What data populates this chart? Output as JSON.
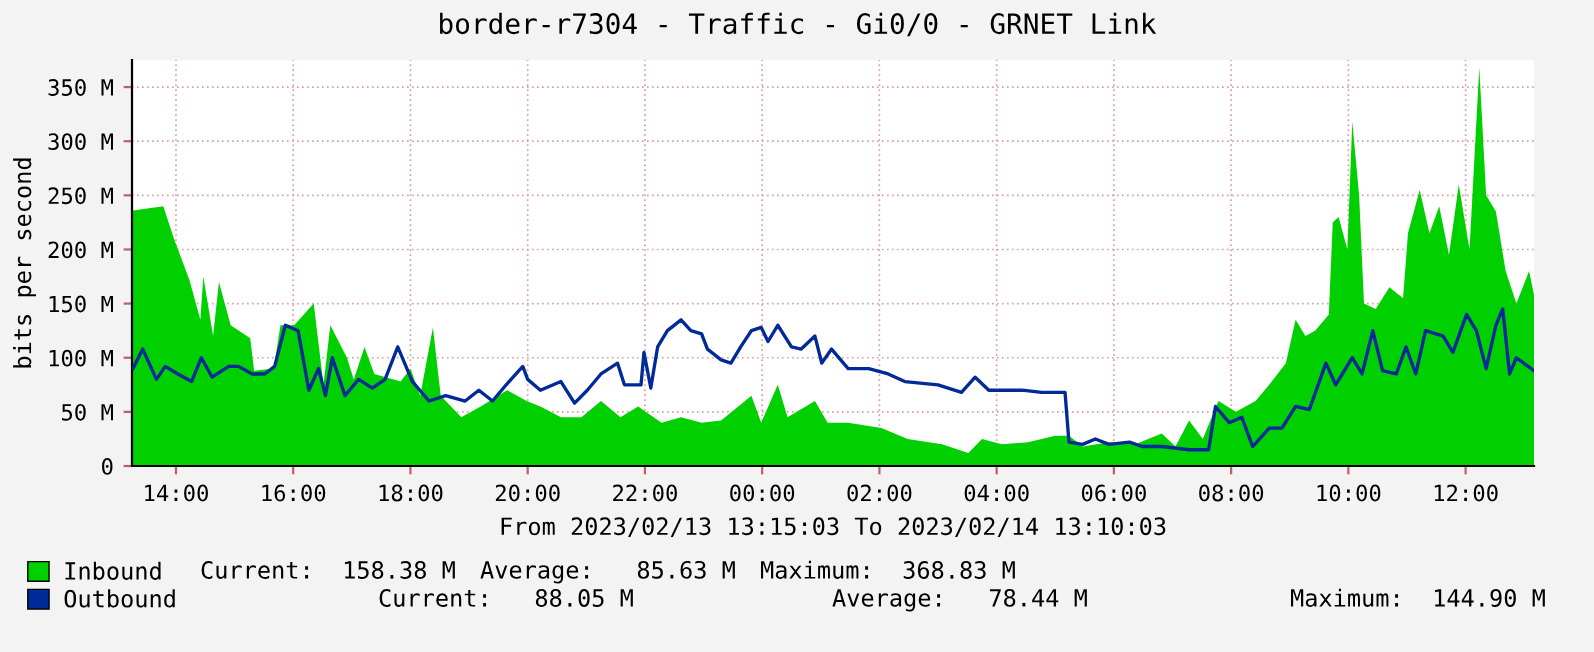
{
  "chart_data": {
    "type": "area",
    "title": "border-r7304 - Traffic - Gi0/0 - GRNET Link",
    "xlabel": "From 2023/02/13 13:15:03 To 2023/02/14 13:10:03",
    "ylabel": "bits per second",
    "xlim": [
      "2023-02-13T13:15",
      "2023-02-14T13:10"
    ],
    "ylim": [
      0,
      375
    ],
    "xticks": [
      {
        "value": "2023-02-13T14:00",
        "label": "14:00"
      },
      {
        "value": "2023-02-13T16:00",
        "label": "16:00"
      },
      {
        "value": "2023-02-13T18:00",
        "label": "18:00"
      },
      {
        "value": "2023-02-13T20:00",
        "label": "20:00"
      },
      {
        "value": "2023-02-13T22:00",
        "label": "22:00"
      },
      {
        "value": "2023-02-14T00:00",
        "label": "00:00"
      },
      {
        "value": "2023-02-14T02:00",
        "label": "02:00"
      },
      {
        "value": "2023-02-14T04:00",
        "label": "04:00"
      },
      {
        "value": "2023-02-14T06:00",
        "label": "06:00"
      },
      {
        "value": "2023-02-14T08:00",
        "label": "08:00"
      },
      {
        "value": "2023-02-14T10:00",
        "label": "10:00"
      },
      {
        "value": "2023-02-14T12:00",
        "label": "12:00"
      }
    ],
    "yticks": [
      0,
      {
        "value": 50,
        "label": "50 M"
      },
      {
        "value": 100,
        "label": "100 M"
      },
      {
        "value": 150,
        "label": "150 M"
      },
      {
        "value": 200,
        "label": "200 M"
      },
      {
        "value": 250,
        "label": "250 M"
      },
      {
        "value": 300,
        "label": "300 M"
      },
      {
        "value": 350,
        "label": "350 M"
      }
    ],
    "grid": true,
    "legend": "bottom left",
    "series": [
      {
        "name": "Inbound",
        "color": "#00cf00",
        "x": [
          "2023-02-13T13:16",
          "2023-02-13T13:47",
          "2023-02-13T13:58",
          "2023-02-13T14:14",
          "2023-02-13T14:25",
          "2023-02-13T14:28",
          "2023-02-13T14:38",
          "2023-02-13T14:44",
          "2023-02-13T14:56",
          "2023-02-13T15:16",
          "2023-02-13T15:20",
          "2023-02-13T15:40",
          "2023-02-13T15:47",
          "2023-02-13T16:01",
          "2023-02-13T16:21",
          "2023-02-13T16:31",
          "2023-02-13T16:38",
          "2023-02-13T16:55",
          "2023-02-13T17:02",
          "2023-02-13T17:13",
          "2023-02-13T17:23",
          "2023-02-13T17:50",
          "2023-02-13T18:00",
          "2023-02-13T18:10",
          "2023-02-13T18:23",
          "2023-02-13T18:31",
          "2023-02-13T18:52",
          "2023-02-13T19:12",
          "2023-02-13T19:39",
          "2023-02-13T19:59",
          "2023-02-13T20:13",
          "2023-02-13T20:34",
          "2023-02-13T20:55",
          "2023-02-13T21:15",
          "2023-02-13T21:35",
          "2023-02-13T21:53",
          "2023-02-13T22:17",
          "2023-02-13T22:37",
          "2023-02-13T22:58",
          "2023-02-13T23:18",
          "2023-02-13T23:49",
          "2023-02-13T23:59",
          "2023-02-14T00:16",
          "2023-02-14T00:26",
          "2023-02-14T00:54",
          "2023-02-14T01:07",
          "2023-02-14T01:28",
          "2023-02-14T02:02",
          "2023-02-14T02:29",
          "2023-02-14T03:04",
          "2023-02-14T03:31",
          "2023-02-14T03:45",
          "2023-02-14T04:05",
          "2023-02-14T04:32",
          "2023-02-14T05:00",
          "2023-02-14T05:14",
          "2023-02-14T05:28",
          "2023-02-14T05:55",
          "2023-02-14T06:22",
          "2023-02-14T06:49",
          "2023-02-14T07:03",
          "2023-02-14T07:17",
          "2023-02-14T07:31",
          "2023-02-14T07:47",
          "2023-02-14T08:05",
          "2023-02-14T08:25",
          "2023-02-14T08:39",
          "2023-02-14T08:56",
          "2023-02-14T09:06",
          "2023-02-14T09:16",
          "2023-02-14T09:26",
          "2023-02-14T09:40",
          "2023-02-14T09:44",
          "2023-02-14T09:50",
          "2023-02-14T09:59",
          "2023-02-14T10:04",
          "2023-02-14T10:11",
          "2023-02-14T10:16",
          "2023-02-14T10:28",
          "2023-02-14T10:42",
          "2023-02-14T10:56",
          "2023-02-14T11:01",
          "2023-02-14T11:13",
          "2023-02-14T11:23",
          "2023-02-14T11:33",
          "2023-02-14T11:43",
          "2023-02-14T11:53",
          "2023-02-14T12:04",
          "2023-02-14T12:14",
          "2023-02-14T12:21",
          "2023-02-14T12:31",
          "2023-02-14T12:41",
          "2023-02-14T12:52",
          "2023-02-14T13:05",
          "2023-02-14T13:10"
        ],
        "values": [
          236,
          240,
          210,
          171,
          135,
          175,
          120,
          170,
          130,
          118,
          88,
          90,
          130,
          130,
          150,
          75,
          130,
          100,
          80,
          110,
          85,
          78,
          90,
          65,
          128,
          65,
          45,
          55,
          70,
          60,
          55,
          45,
          45,
          60,
          45,
          55,
          40,
          45,
          40,
          42,
          65,
          40,
          75,
          45,
          60,
          40,
          40,
          35,
          25,
          20,
          12,
          25,
          20,
          22,
          28,
          28,
          18,
          22,
          20,
          30,
          18,
          42,
          25,
          60,
          50,
          60,
          75,
          95,
          135,
          120,
          125,
          140,
          225,
          230,
          200,
          318,
          250,
          150,
          145,
          165,
          155,
          215,
          255,
          215,
          240,
          195,
          260,
          200,
          368,
          250,
          235,
          180,
          150,
          180,
          158
        ]
      },
      {
        "name": "Outbound",
        "type": "line",
        "color": "#002a97",
        "x": [
          "2023-02-13T13:16",
          "2023-02-13T13:26",
          "2023-02-13T13:40",
          "2023-02-13T13:49",
          "2023-02-13T14:02",
          "2023-02-13T14:16",
          "2023-02-13T14:26",
          "2023-02-13T14:37",
          "2023-02-13T14:54",
          "2023-02-13T15:04",
          "2023-02-13T15:18",
          "2023-02-13T15:31",
          "2023-02-13T15:41",
          "2023-02-13T15:52",
          "2023-02-13T16:05",
          "2023-02-13T16:16",
          "2023-02-13T16:26",
          "2023-02-13T16:33",
          "2023-02-13T16:40",
          "2023-02-13T16:53",
          "2023-02-13T17:07",
          "2023-02-13T17:21",
          "2023-02-13T17:34",
          "2023-02-13T17:47",
          "2023-02-13T18:02",
          "2023-02-13T18:19",
          "2023-02-13T18:36",
          "2023-02-13T18:56",
          "2023-02-13T19:10",
          "2023-02-13T19:24",
          "2023-02-13T19:38",
          "2023-02-13T19:55",
          "2023-02-13T20:00",
          "2023-02-13T20:13",
          "2023-02-13T20:34",
          "2023-02-13T20:48",
          "2023-02-13T21:01",
          "2023-02-13T21:15",
          "2023-02-13T21:32",
          "2023-02-13T21:39",
          "2023-02-13T21:56",
          "2023-02-13T21:59",
          "2023-02-13T22:06",
          "2023-02-13T22:13",
          "2023-02-13T22:23",
          "2023-02-13T22:37",
          "2023-02-13T22:47",
          "2023-02-13T22:58",
          "2023-02-13T23:04",
          "2023-02-13T23:18",
          "2023-02-13T23:28",
          "2023-02-13T23:38",
          "2023-02-13T23:49",
          "2023-02-13T23:59",
          "2023-02-14T00:06",
          "2023-02-14T00:16",
          "2023-02-14T00:30",
          "2023-02-14T00:40",
          "2023-02-14T00:54",
          "2023-02-14T01:01",
          "2023-02-14T01:11",
          "2023-02-14T01:28",
          "2023-02-14T01:49",
          "2023-02-14T02:09",
          "2023-02-14T02:26",
          "2023-02-14T03:00",
          "2023-02-14T03:24",
          "2023-02-14T03:38",
          "2023-02-14T03:52",
          "2023-02-14T04:26",
          "2023-02-14T04:46",
          "2023-02-14T05:04",
          "2023-02-14T05:10",
          "2023-02-14T05:14",
          "2023-02-14T05:28",
          "2023-02-14T05:41",
          "2023-02-14T05:55",
          "2023-02-14T06:16",
          "2023-02-14T06:29",
          "2023-02-14T06:49",
          "2023-02-14T07:17",
          "2023-02-14T07:37",
          "2023-02-14T07:44",
          "2023-02-14T07:58",
          "2023-02-14T08:11",
          "2023-02-14T08:22",
          "2023-02-14T08:39",
          "2023-02-14T08:52",
          "2023-02-14T09:06",
          "2023-02-14T09:20",
          "2023-02-14T09:37",
          "2023-02-14T09:47",
          "2023-02-14T10:04",
          "2023-02-14T10:14",
          "2023-02-14T10:25",
          "2023-02-14T10:35",
          "2023-02-14T10:49",
          "2023-02-14T10:59",
          "2023-02-14T11:09",
          "2023-02-14T11:19",
          "2023-02-14T11:37",
          "2023-02-14T11:47",
          "2023-02-14T12:01",
          "2023-02-14T12:11",
          "2023-02-14T12:21",
          "2023-02-14T12:31",
          "2023-02-14T12:38",
          "2023-02-14T12:45",
          "2023-02-14T12:52",
          "2023-02-14T13:10"
        ],
        "values": [
          90,
          108,
          80,
          92,
          85,
          78,
          100,
          82,
          92,
          92,
          85,
          85,
          92,
          130,
          125,
          70,
          90,
          65,
          100,
          65,
          80,
          72,
          80,
          110,
          78,
          60,
          65,
          60,
          70,
          60,
          75,
          92,
          80,
          70,
          78,
          58,
          70,
          85,
          95,
          75,
          75,
          105,
          72,
          110,
          125,
          135,
          125,
          122,
          108,
          98,
          95,
          110,
          125,
          128,
          115,
          130,
          110,
          108,
          120,
          95,
          108,
          90,
          90,
          85,
          78,
          75,
          68,
          82,
          70,
          70,
          68,
          68,
          68,
          22,
          20,
          25,
          20,
          22,
          18,
          18,
          15,
          15,
          55,
          40,
          45,
          18,
          35,
          35,
          55,
          52,
          95,
          75,
          100,
          85,
          125,
          88,
          85,
          110,
          85,
          125,
          120,
          105,
          140,
          125,
          90,
          130,
          145,
          85,
          100,
          88
        ]
      }
    ],
    "annotations": [
      "Current:  158.38 M",
      "Average:   85.63 M",
      "Maximum:  368.83 M",
      "Current:   88.05 M",
      "Average:   78.44 M",
      "Maximum:  144.90 M"
    ]
  }
}
